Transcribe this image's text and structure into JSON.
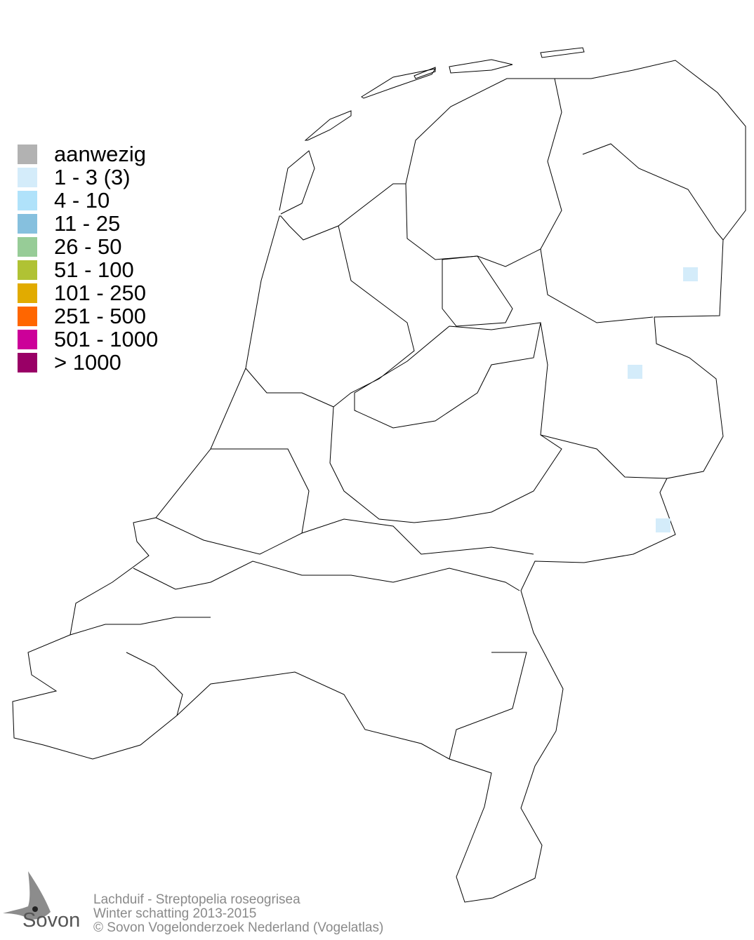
{
  "legend": {
    "items": [
      {
        "label": "aanwezig",
        "color": "#b2b2b2"
      },
      {
        "label": "1 - 3 (3)",
        "color": "#d4ecfa"
      },
      {
        "label": "4 - 10",
        "color": "#b0e2fa"
      },
      {
        "label": "11 - 25",
        "color": "#86c0de"
      },
      {
        "label": "26 - 50",
        "color": "#97cc97"
      },
      {
        "label": "51 - 100",
        "color": "#b0c234"
      },
      {
        "label": "101 - 250",
        "color": "#e1ab00"
      },
      {
        "label": "251 - 500",
        "color": "#ff6600"
      },
      {
        "label": "501 - 1000",
        "color": "#cc0099"
      },
      {
        "label": "> 1000",
        "color": "#990066"
      }
    ]
  },
  "map": {
    "occupied_cells": [
      {
        "class": "1 - 3 (3)"
      },
      {
        "class": "1 - 3 (3)"
      },
      {
        "class": "1 - 3 (3)"
      }
    ]
  },
  "footer": {
    "species": "Lachduif - Streptopelia roseogrisea",
    "period": "Winter schatting 2013-2015",
    "copyright": "© Sovon Vogelonderzoek Nederland (Vogelatlas)"
  },
  "logo": {
    "text": "Sovon"
  }
}
